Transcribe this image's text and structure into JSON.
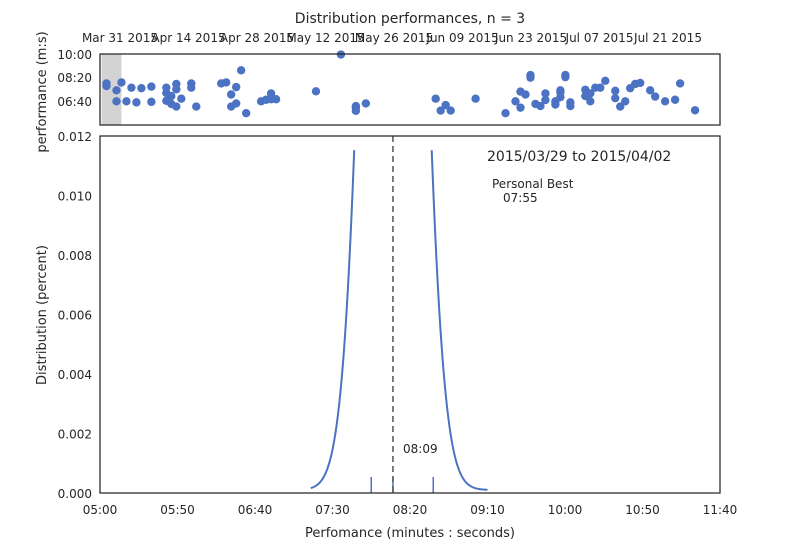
{
  "figure": {
    "title": "Distribution performances, n = 3"
  },
  "colors": {
    "series": "#4c72c4",
    "axis": "#262626",
    "highlight": "#d3d3d3",
    "median_line": "#555555"
  },
  "chart_data": [
    {
      "type": "scatter",
      "name": "timeline",
      "ylabel": "performance (m:s)",
      "x_ticks": [
        "Mar 31 2015",
        "Apr 14 2015",
        "Apr 28 2015",
        "May 12 2015",
        "May 26 2015",
        "Jun 09 2015",
        "Jun 23 2015",
        "Jul 07 2015",
        "Jul 21 2015"
      ],
      "x_range": [
        "2015-03-30",
        "2015-07-31"
      ],
      "y_ticks": [
        "10:00",
        "08:20",
        "06:40"
      ],
      "y_range_seconds": [
        330,
        600
      ],
      "highlight_range": [
        "2015-03-29",
        "2015-04-02"
      ],
      "points": [
        [
          "2015-03-30",
          488
        ],
        [
          "2015-03-30",
          478
        ],
        [
          "2015-04-01",
          462
        ],
        [
          "2015-04-01",
          420
        ],
        [
          "2015-04-02",
          492
        ],
        [
          "2015-04-03",
          420
        ],
        [
          "2015-04-04",
          472
        ],
        [
          "2015-04-05",
          416
        ],
        [
          "2015-04-06",
          470
        ],
        [
          "2015-04-08",
          476
        ],
        [
          "2015-04-08",
          418
        ],
        [
          "2015-04-11",
          472
        ],
        [
          "2015-04-11",
          452
        ],
        [
          "2015-04-11",
          422
        ],
        [
          "2015-04-12",
          440
        ],
        [
          "2015-04-12",
          410
        ],
        [
          "2015-04-13",
          400
        ],
        [
          "2015-04-13",
          486
        ],
        [
          "2015-04-13",
          466
        ],
        [
          "2015-04-14",
          430
        ],
        [
          "2015-04-16",
          488
        ],
        [
          "2015-04-16",
          472
        ],
        [
          "2015-04-17",
          400
        ],
        [
          "2015-04-22",
          488
        ],
        [
          "2015-04-23",
          492
        ],
        [
          "2015-04-24",
          446
        ],
        [
          "2015-04-24",
          400
        ],
        [
          "2015-04-25",
          474
        ],
        [
          "2015-04-25",
          412
        ],
        [
          "2015-04-26",
          538
        ],
        [
          "2015-04-27",
          375
        ],
        [
          "2015-04-30",
          420
        ],
        [
          "2015-05-01",
          426
        ],
        [
          "2015-05-02",
          450
        ],
        [
          "2015-05-02",
          428
        ],
        [
          "2015-05-03",
          428
        ],
        [
          "2015-05-11",
          458
        ],
        [
          "2015-05-16",
          598
        ],
        [
          "2015-05-19",
          384
        ],
        [
          "2015-05-19",
          402
        ],
        [
          "2015-05-19",
          396
        ],
        [
          "2015-05-21",
          412
        ],
        [
          "2015-06-04",
          430
        ],
        [
          "2015-06-05",
          385
        ],
        [
          "2015-06-06",
          406
        ],
        [
          "2015-06-07",
          385
        ],
        [
          "2015-06-12",
          430
        ],
        [
          "2015-06-18",
          375
        ],
        [
          "2015-06-20",
          420
        ],
        [
          "2015-06-21",
          457
        ],
        [
          "2015-06-21",
          396
        ],
        [
          "2015-06-22",
          446
        ],
        [
          "2015-06-23",
          510
        ],
        [
          "2015-06-23",
          520
        ],
        [
          "2015-06-24",
          410
        ],
        [
          "2015-06-25",
          402
        ],
        [
          "2015-06-26",
          450
        ],
        [
          "2015-06-26",
          425
        ],
        [
          "2015-06-28",
          408
        ],
        [
          "2015-06-28",
          420
        ],
        [
          "2015-06-29",
          462
        ],
        [
          "2015-06-29",
          454
        ],
        [
          "2015-06-29",
          436
        ],
        [
          "2015-06-30",
          520
        ],
        [
          "2015-06-30",
          512
        ],
        [
          "2015-07-01",
          416
        ],
        [
          "2015-07-01",
          402
        ],
        [
          "2015-07-04",
          464
        ],
        [
          "2015-07-04",
          440
        ],
        [
          "2015-07-05",
          450
        ],
        [
          "2015-07-05",
          420
        ],
        [
          "2015-07-06",
          472
        ],
        [
          "2015-07-07",
          472
        ],
        [
          "2015-07-08",
          498
        ],
        [
          "2015-07-10",
          460
        ],
        [
          "2015-07-10",
          432
        ],
        [
          "2015-07-11",
          400
        ],
        [
          "2015-07-12",
          420
        ],
        [
          "2015-07-13",
          470
        ],
        [
          "2015-07-14",
          486
        ],
        [
          "2015-07-15",
          490
        ],
        [
          "2015-07-17",
          462
        ],
        [
          "2015-07-18",
          438
        ],
        [
          "2015-07-20",
          420
        ],
        [
          "2015-07-22",
          426
        ],
        [
          "2015-07-23",
          488
        ],
        [
          "2015-07-26",
          386
        ]
      ]
    },
    {
      "type": "line",
      "name": "distribution",
      "xlabel": "Perfomance (minutes : seconds)",
      "ylabel": "Distribution (percent)",
      "x_range_seconds": [
        300,
        700
      ],
      "x_ticks": [
        "05:00",
        "05:50",
        "06:40",
        "07:30",
        "08:20",
        "09:10",
        "10:00",
        "10:50",
        "11:40"
      ],
      "ylim": [
        0,
        0.012
      ],
      "y_ticks": [
        "0.000",
        "0.002",
        "0.004",
        "0.006",
        "0.008",
        "0.010",
        "0.012"
      ],
      "curve": {
        "mean_seconds": 489,
        "std_seconds": 14.5,
        "scale": 0.0505,
        "x_from_seconds": 436,
        "x_to_seconds": 550
      },
      "rug_seconds": [
        475,
        489,
        515
      ],
      "median_line_seconds": 489,
      "annotations": {
        "range": "2015/03/29 to 2015/04/02",
        "personal_best_label": "Personal Best",
        "personal_best_value": "07:55",
        "median_label": "08:09"
      }
    }
  ]
}
